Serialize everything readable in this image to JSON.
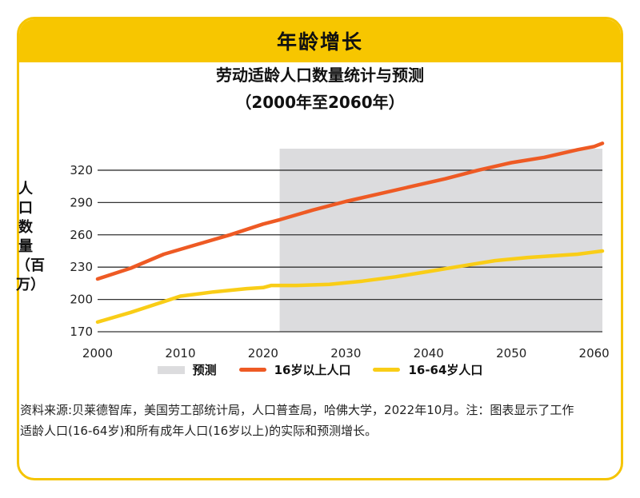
{
  "banner": {
    "title": "年龄增长"
  },
  "chart_data": {
    "type": "line",
    "title": "劳动适龄人口数量统计与预测",
    "subtitle": "（2000年至2060年）",
    "ylabel": "人口数量（百万）",
    "xlabel": "",
    "xlim": [
      2000,
      2061
    ],
    "ylim": [
      170,
      340
    ],
    "x_ticks": [
      2000,
      2010,
      2020,
      2030,
      2040,
      2050,
      2060
    ],
    "y_ticks": [
      170,
      200,
      230,
      260,
      290,
      320
    ],
    "grid": "horizontal",
    "forecast_region": {
      "label": "预测",
      "start": 2022,
      "end": 2061,
      "color": "#dcdcde"
    },
    "series": [
      {
        "name": "16岁以上人口",
        "color": "#ee5a24",
        "x": [
          2000,
          2004,
          2008,
          2012,
          2016,
          2020,
          2022,
          2026,
          2030,
          2034,
          2038,
          2042,
          2046,
          2050,
          2054,
          2058,
          2060,
          2061
        ],
        "values": [
          219,
          229,
          242,
          251,
          260,
          270,
          274,
          283,
          291,
          298,
          305,
          312,
          320,
          327,
          332,
          339,
          342,
          345
        ]
      },
      {
        "name": "16-64岁人口",
        "color": "#f9cd17",
        "x": [
          2000,
          2004,
          2008,
          2010,
          2014,
          2018,
          2020,
          2021,
          2024,
          2028,
          2032,
          2036,
          2040,
          2044,
          2048,
          2052,
          2056,
          2058,
          2060,
          2061
        ],
        "values": [
          179,
          188,
          198,
          203,
          207,
          210,
          211,
          213,
          213,
          214,
          217,
          221,
          226,
          231,
          236,
          239,
          241,
          242,
          244,
          245
        ]
      }
    ]
  },
  "legend": {
    "forecast_label": "预测",
    "series1_label": "16岁以上人口",
    "series2_label": "16-64岁人口"
  },
  "note": "资料来源:贝莱德智库，美国劳工部统计局，人口普查局，哈佛大学，2022年10月。注：图表显示了工作适龄人口(16-64岁)和所有成年人口(16岁以上)的实际和预测增长。",
  "colors": {
    "accent": "#f7c600",
    "forecast": "#dcdcde",
    "series1": "#ee5a24",
    "series2": "#f9cd17"
  }
}
